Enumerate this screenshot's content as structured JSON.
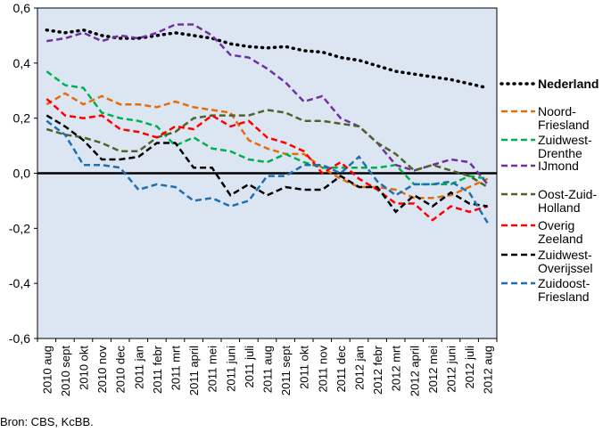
{
  "chart_data": {
    "type": "line",
    "categories": [
      "2010 aug",
      "2010 sept",
      "2010 okt",
      "2010 nov",
      "2010 dec",
      "2011 jan",
      "2011 febr",
      "2011 mrt",
      "2011 april",
      "2011 mei",
      "2011 juni",
      "2011 juli",
      "2011 aug",
      "2011 sept",
      "2011 okt",
      "2011 nov",
      "2011 dec",
      "2012 jan",
      "2012 febr",
      "2012 mrt",
      "2012 april",
      "2012 mei",
      "2012 juni",
      "2012 juli",
      "2012 aug"
    ],
    "ylim": [
      -0.6,
      0.6
    ],
    "yticks": [
      -0.6,
      -0.4,
      -0.2,
      0.0,
      0.2,
      0.4,
      0.6
    ],
    "ytick_labels": [
      "-0,6",
      "-0,4",
      "-0,2",
      "0,0",
      "0,2",
      "0,4",
      "0,6"
    ],
    "grid": false,
    "legend_position": "right",
    "plot_background": "#dce6f2",
    "series": [
      {
        "name": "Nederland",
        "color": "#000000",
        "style": "dotted",
        "bold": true,
        "values": [
          0.52,
          0.51,
          0.52,
          0.5,
          0.49,
          0.49,
          0.5,
          0.51,
          0.5,
          0.49,
          0.47,
          0.46,
          0.455,
          0.46,
          0.445,
          0.44,
          0.42,
          0.41,
          0.39,
          0.37,
          0.36,
          0.35,
          0.34,
          0.325,
          0.31
        ]
      },
      {
        "name": "Noord-Friesland",
        "color": "#e46c0a",
        "style": "dashed",
        "values": [
          0.25,
          0.29,
          0.25,
          0.28,
          0.25,
          0.25,
          0.24,
          0.26,
          0.24,
          0.23,
          0.22,
          0.12,
          0.09,
          0.07,
          0.07,
          0.02,
          -0.02,
          -0.05,
          -0.05,
          -0.06,
          -0.09,
          -0.09,
          -0.08,
          -0.05,
          -0.02
        ]
      },
      {
        "name": "Zuidwest-Drenthe",
        "color": "#00b050",
        "style": "dashed",
        "values": [
          0.37,
          0.32,
          0.31,
          0.22,
          0.2,
          0.19,
          0.17,
          0.1,
          0.13,
          0.09,
          0.08,
          0.05,
          0.04,
          0.07,
          0.04,
          0.02,
          0.02,
          0.02,
          0.02,
          0.03,
          -0.04,
          -0.04,
          -0.04,
          -0.01,
          -0.02
        ]
      },
      {
        "name": "IJmond",
        "color": "#7030a0",
        "style": "dashed",
        "values": [
          0.48,
          0.49,
          0.51,
          0.48,
          0.5,
          0.49,
          0.51,
          0.54,
          0.54,
          0.5,
          0.43,
          0.42,
          0.38,
          0.33,
          0.26,
          0.28,
          0.2,
          0.17,
          0.11,
          0.03,
          0.01,
          0.03,
          0.05,
          0.04,
          -0.04
        ]
      },
      {
        "name": "Oost-Zuid-Holland",
        "color": "#4f6228",
        "style": "dashed",
        "values": [
          0.16,
          0.14,
          0.13,
          0.11,
          0.08,
          0.08,
          0.13,
          0.15,
          0.2,
          0.21,
          0.21,
          0.21,
          0.23,
          0.22,
          0.19,
          0.19,
          0.18,
          0.17,
          0.11,
          0.07,
          0.01,
          0.03,
          0.01,
          -0.01,
          -0.05
        ]
      },
      {
        "name": "Overig Zeeland",
        "color": "#ff0000",
        "style": "dashed",
        "values": [
          0.27,
          0.21,
          0.2,
          0.21,
          0.16,
          0.15,
          0.13,
          0.17,
          0.16,
          0.21,
          0.17,
          0.19,
          0.13,
          0.11,
          0.08,
          0.0,
          0.04,
          -0.02,
          -0.06,
          -0.11,
          -0.11,
          -0.17,
          -0.12,
          -0.14,
          -0.12
        ]
      },
      {
        "name": "Zuidwest-Overijssel",
        "color": "#000000",
        "style": "dashed",
        "values": [
          0.21,
          0.17,
          0.12,
          0.05,
          0.05,
          0.06,
          0.11,
          0.11,
          0.02,
          0.02,
          -0.08,
          -0.04,
          -0.08,
          -0.05,
          -0.06,
          -0.06,
          -0.01,
          -0.05,
          -0.05,
          -0.14,
          -0.08,
          -0.12,
          -0.07,
          -0.11,
          -0.12
        ]
      },
      {
        "name": "Zuidoost-Friesland",
        "color": "#1f6fb4",
        "style": "dashed",
        "values": [
          0.19,
          0.14,
          0.03,
          0.03,
          0.02,
          -0.06,
          -0.04,
          -0.05,
          -0.1,
          -0.09,
          -0.12,
          -0.1,
          -0.01,
          -0.01,
          0.03,
          0.03,
          0.0,
          0.06,
          -0.03,
          -0.08,
          -0.04,
          -0.04,
          -0.03,
          -0.07,
          -0.18
        ]
      }
    ]
  },
  "legend": [
    {
      "lines": [
        "Nederland"
      ],
      "bold": true
    },
    {
      "lines": [
        "Noord-",
        "Friesland"
      ]
    },
    {
      "lines": [
        "Zuidwest-",
        "Drenthe"
      ]
    },
    {
      "lines": [
        "IJmond"
      ]
    },
    {
      "lines": [
        "Oost-Zuid-",
        "Holland"
      ]
    },
    {
      "lines": [
        "Overig",
        "Zeeland"
      ]
    },
    {
      "lines": [
        "Zuidwest-",
        "Overijssel"
      ]
    },
    {
      "lines": [
        "Zuidoost-",
        "Friesland"
      ]
    }
  ],
  "source_text": "Bron: CBS, KcBB."
}
